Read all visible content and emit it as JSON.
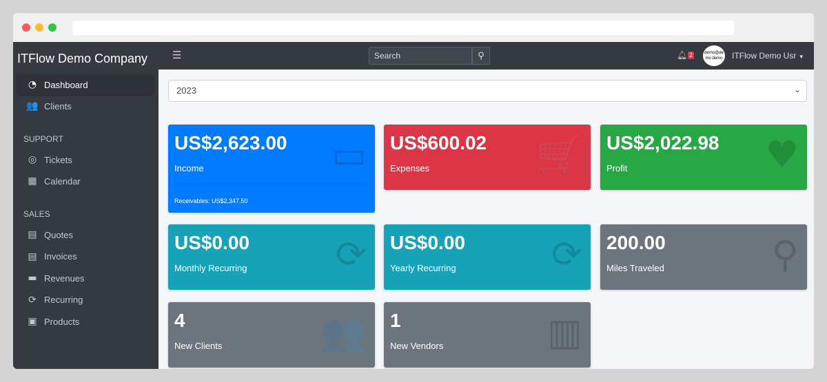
{
  "company": "ITFlow Demo Company",
  "sidebar": {
    "items": [
      {
        "label": "Dashboard",
        "icon": "tachometer-icon",
        "glyph": "◔",
        "active": true
      },
      {
        "label": "Clients",
        "icon": "users-icon",
        "glyph": "👥"
      }
    ],
    "support_header": "SUPPORT",
    "support": [
      {
        "label": "Tickets",
        "icon": "life-ring-icon",
        "glyph": "◎"
      },
      {
        "label": "Calendar",
        "icon": "calendar-icon",
        "glyph": "▦"
      }
    ],
    "sales_header": "SALES",
    "sales": [
      {
        "label": "Quotes",
        "icon": "file-icon",
        "glyph": "▤"
      },
      {
        "label": "Invoices",
        "icon": "invoice-icon",
        "glyph": "▤"
      },
      {
        "label": "Revenues",
        "icon": "credit-card-icon",
        "glyph": "▬"
      },
      {
        "label": "Recurring",
        "icon": "sync-icon",
        "glyph": "⟳"
      },
      {
        "label": "Products",
        "icon": "box-icon",
        "glyph": "▣"
      }
    ]
  },
  "topnav": {
    "search_placeholder": "Search",
    "notifications": "2",
    "avatar_text": "demo@demo demo",
    "user": "ITFlow Demo Usr"
  },
  "year": "2023",
  "cards": [
    {
      "value": "US$2,623.00",
      "label": "Income",
      "color": "#007bff",
      "icon": "credit-card-icon",
      "glyph": "▭",
      "footer": "Receivables: US$2,347.50"
    },
    {
      "value": "US$600.02",
      "label": "Expenses",
      "color": "#dc3545",
      "icon": "shopping-cart-icon",
      "glyph": "🛒"
    },
    {
      "value": "US$2,022.98",
      "label": "Profit",
      "color": "#28a745",
      "icon": "heart-icon",
      "glyph": "♥"
    },
    {
      "value": "US$0.00",
      "label": "Monthly Recurring",
      "color": "#17a2b8",
      "icon": "sync-icon",
      "glyph": "⟳"
    },
    {
      "value": "US$0.00",
      "label": "Yearly Recurring",
      "color": "#17a2b8",
      "icon": "sync-icon",
      "glyph": "⟳"
    },
    {
      "value": "200.00",
      "label": "Miles Traveled",
      "color": "#6c757d",
      "icon": "route-icon",
      "glyph": "⚲"
    },
    {
      "value": "4",
      "label": "New Clients",
      "color": "#6c757d",
      "icon": "users-icon",
      "glyph": "👥"
    },
    {
      "value": "1",
      "label": "New Vendors",
      "color": "#6c757d",
      "icon": "building-icon",
      "glyph": "▥"
    }
  ]
}
